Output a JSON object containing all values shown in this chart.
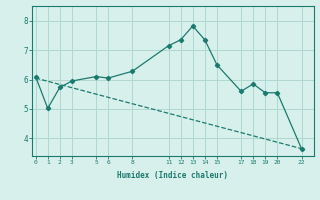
{
  "line1_x": [
    0,
    1,
    2,
    3,
    5,
    6,
    8,
    11,
    12,
    13,
    14,
    15,
    17,
    18,
    19,
    20,
    22
  ],
  "line1_y": [
    6.1,
    5.02,
    5.73,
    5.95,
    6.1,
    6.05,
    6.28,
    7.15,
    7.35,
    7.82,
    7.35,
    6.5,
    5.6,
    5.85,
    5.55,
    5.55,
    3.65
  ],
  "line2_x": [
    0,
    22
  ],
  "line2_y": [
    6.05,
    3.65
  ],
  "line_color": "#1a7a6e",
  "bg_color": "#d8f0ec",
  "grid_color": "#b0d8d0",
  "xlabel": "Humidex (Indice chaleur)",
  "xticks": [
    0,
    1,
    2,
    3,
    5,
    6,
    8,
    11,
    12,
    13,
    14,
    15,
    17,
    18,
    19,
    20,
    22
  ],
  "xtick_labels": [
    "0",
    "1",
    "2",
    "3",
    "5",
    "6",
    "8",
    "11",
    "12",
    "13",
    "14",
    "15",
    "17",
    "18",
    "19",
    "20",
    "22"
  ],
  "yticks": [
    4,
    5,
    6,
    7,
    8
  ],
  "ylim": [
    3.4,
    8.5
  ],
  "xlim": [
    -0.3,
    23.0
  ]
}
